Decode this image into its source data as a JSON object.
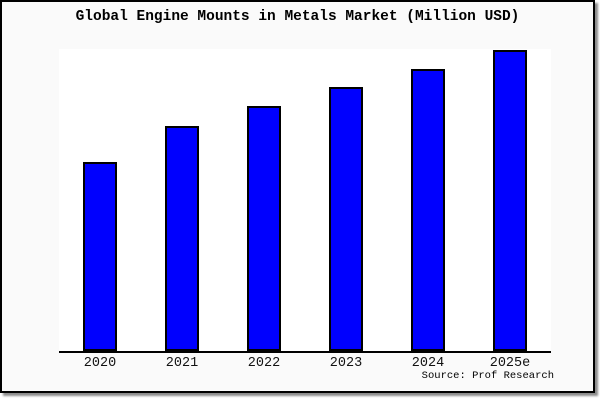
{
  "chart_data": {
    "type": "bar",
    "title": "Global Engine Mounts in Metals Market (Million USD)",
    "categories": [
      "2020",
      "2021",
      "2022",
      "2023",
      "2024",
      "2025e"
    ],
    "values": [
      62.9,
      74.8,
      81.4,
      87.6,
      93.7,
      100
    ],
    "value_scale_note": "no y-axis ticks or numeric labels shown; values are relative bar heights normalized to 2025e = 100",
    "xlabel": "",
    "ylabel": "",
    "ylim": [
      0,
      100.5
    ],
    "grid": false,
    "legend": null,
    "bar_color": "#0000FE",
    "bar_edge_color": "#000000",
    "source_note": "Source: Prof Research"
  },
  "colors": {
    "outer_background": "#fafafa",
    "plot_background": "#ffffff",
    "frame_border": "#000000",
    "axis_line": "#000000",
    "shadow": "#8c8c8c",
    "text": "#000000"
  }
}
